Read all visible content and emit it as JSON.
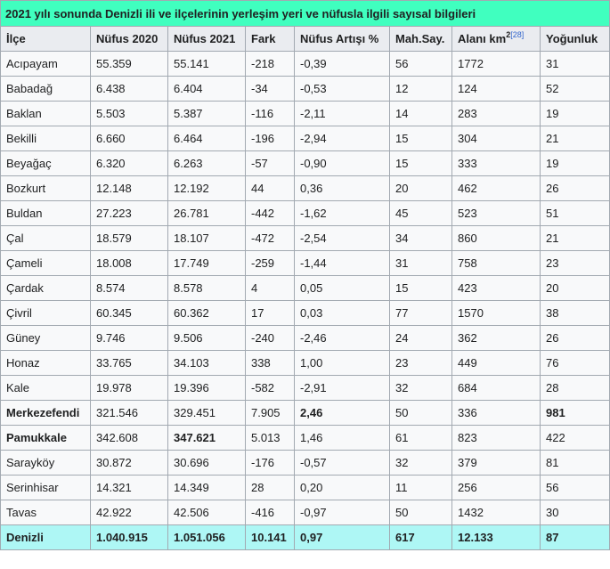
{
  "caption": "2021 yılı sonunda Denizli ili ve ilçelerinin yerleşim yeri ve nüfusla ilgili sayısal bilgileri",
  "headers": {
    "ilce": "İlçe",
    "nufus2020": "Nüfus 2020",
    "nufus2021": "Nüfus 2021",
    "fark": "Fark",
    "artis": "Nüfus Artışı %",
    "mah": "Mah.Say.",
    "alan": "Alanı  km",
    "alan_sup": "2",
    "alan_ref": "[28]",
    "yogunluk": "Yoğunluk"
  },
  "rows": [
    {
      "ilce": "Acıpayam",
      "n2020": "55.359",
      "n2021": "55.141",
      "fark": "-218",
      "artis": "-0,39",
      "mah": "56",
      "alan": "1772",
      "yog": "31",
      "bold": []
    },
    {
      "ilce": "Babadağ",
      "n2020": "6.438",
      "n2021": "6.404",
      "fark": "-34",
      "artis": "-0,53",
      "mah": "12",
      "alan": "124",
      "yog": "52",
      "bold": []
    },
    {
      "ilce": "Baklan",
      "n2020": "5.503",
      "n2021": "5.387",
      "fark": "-116",
      "artis": "-2,11",
      "mah": "14",
      "alan": "283",
      "yog": "19",
      "bold": []
    },
    {
      "ilce": "Bekilli",
      "n2020": "6.660",
      "n2021": "6.464",
      "fark": "-196",
      "artis": "-2,94",
      "mah": "15",
      "alan": "304",
      "yog": "21",
      "bold": []
    },
    {
      "ilce": "Beyağaç",
      "n2020": "6.320",
      "n2021": "6.263",
      "fark": "-57",
      "artis": "-0,90",
      "mah": "15",
      "alan": "333",
      "yog": "19",
      "bold": []
    },
    {
      "ilce": "Bozkurt",
      "n2020": "12.148",
      "n2021": "12.192",
      "fark": "44",
      "artis": "0,36",
      "mah": "20",
      "alan": "462",
      "yog": "26",
      "bold": []
    },
    {
      "ilce": "Buldan",
      "n2020": "27.223",
      "n2021": "26.781",
      "fark": "-442",
      "artis": "-1,62",
      "mah": "45",
      "alan": "523",
      "yog": "51",
      "bold": []
    },
    {
      "ilce": "Çal",
      "n2020": "18.579",
      "n2021": "18.107",
      "fark": "-472",
      "artis": "-2,54",
      "mah": "34",
      "alan": "860",
      "yog": "21",
      "bold": []
    },
    {
      "ilce": "Çameli",
      "n2020": "18.008",
      "n2021": "17.749",
      "fark": "-259",
      "artis": "-1,44",
      "mah": "31",
      "alan": "758",
      "yog": "23",
      "bold": []
    },
    {
      "ilce": "Çardak",
      "n2020": "8.574",
      "n2021": "8.578",
      "fark": "4",
      "artis": "0,05",
      "mah": "15",
      "alan": "423",
      "yog": "20",
      "bold": []
    },
    {
      "ilce": "Çivril",
      "n2020": "60.345",
      "n2021": "60.362",
      "fark": "17",
      "artis": "0,03",
      "mah": "77",
      "alan": "1570",
      "yog": "38",
      "bold": []
    },
    {
      "ilce": "Güney",
      "n2020": "9.746",
      "n2021": "9.506",
      "fark": "-240",
      "artis": "-2,46",
      "mah": "24",
      "alan": "362",
      "yog": "26",
      "bold": []
    },
    {
      "ilce": "Honaz",
      "n2020": "33.765",
      "n2021": "34.103",
      "fark": "338",
      "artis": "1,00",
      "mah": "23",
      "alan": "449",
      "yog": "76",
      "bold": []
    },
    {
      "ilce": "Kale",
      "n2020": "19.978",
      "n2021": "19.396",
      "fark": "-582",
      "artis": "-2,91",
      "mah": "32",
      "alan": "684",
      "yog": "28",
      "bold": []
    },
    {
      "ilce": "Merkezefendi",
      "n2020": "321.546",
      "n2021": "329.451",
      "fark": "7.905",
      "artis": "2,46",
      "mah": "50",
      "alan": "336",
      "yog": "981",
      "bold": [
        "ilce",
        "artis",
        "yog"
      ]
    },
    {
      "ilce": "Pamukkale",
      "n2020": "342.608",
      "n2021": "347.621",
      "fark": "5.013",
      "artis": "1,46",
      "mah": "61",
      "alan": "823",
      "yog": "422",
      "bold": [
        "ilce",
        "n2021"
      ]
    },
    {
      "ilce": "Sarayköy",
      "n2020": "30.872",
      "n2021": "30.696",
      "fark": "-176",
      "artis": "-0,57",
      "mah": "32",
      "alan": "379",
      "yog": "81",
      "bold": []
    },
    {
      "ilce": "Serinhisar",
      "n2020": "14.321",
      "n2021": "14.349",
      "fark": "28",
      "artis": "0,20",
      "mah": "11",
      "alan": "256",
      "yog": "56",
      "bold": []
    },
    {
      "ilce": "Tavas",
      "n2020": "42.922",
      "n2021": "42.506",
      "fark": "-416",
      "artis": "-0,97",
      "mah": "50",
      "alan": "1432",
      "yog": "30",
      "bold": []
    }
  ],
  "total": {
    "ilce": "Denizli",
    "n2020": "1.040.915",
    "n2021": "1.051.056",
    "fark": "10.141",
    "artis": "0,97",
    "mah": "617",
    "alan": "12.133",
    "yog": "87"
  },
  "colors": {
    "caption_bg": "#40ffbf",
    "header_bg": "#eaecf0",
    "cell_bg": "#f8f9fa",
    "total_bg": "#aef7f5",
    "border": "#a2a9b1",
    "link": "#3366cc"
  }
}
